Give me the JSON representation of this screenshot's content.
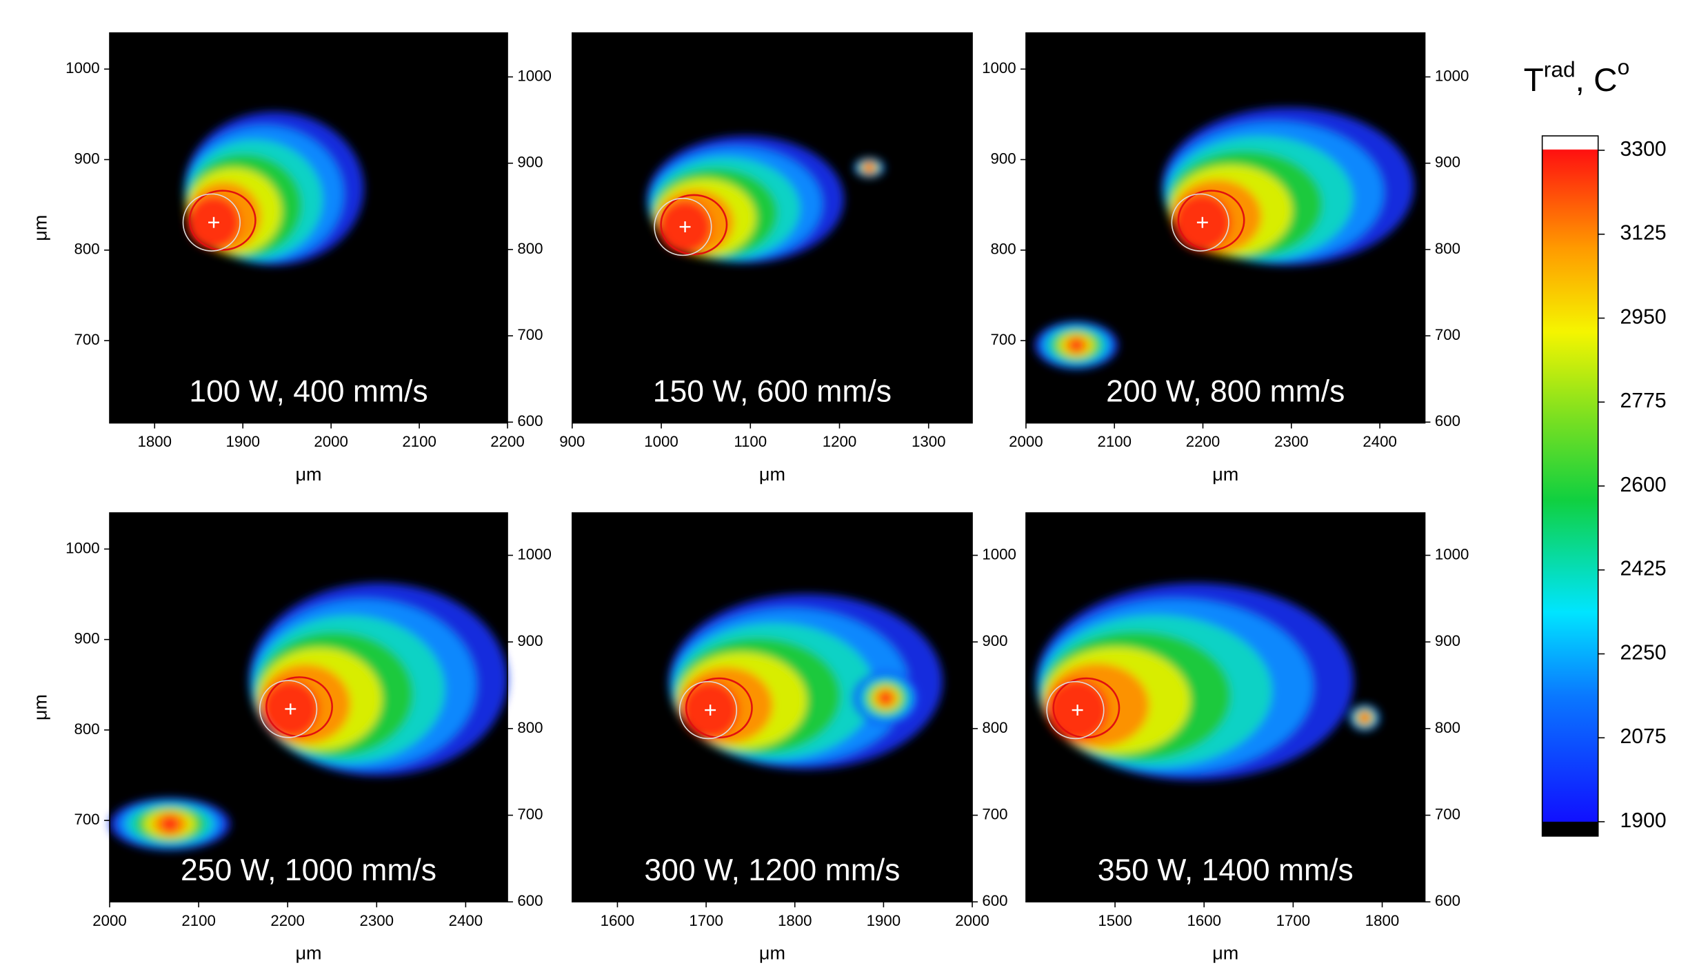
{
  "chart_data": [
    {
      "type": "heatmap",
      "annotation": "100 W, 400 mm/s",
      "xlabel": "μm",
      "ylabel": "μm",
      "xlim": [
        1749,
        2200
      ],
      "xticks": [
        1800,
        1900,
        2000,
        2100,
        2200
      ],
      "ylim": [
        609,
        1040
      ],
      "yticks": [
        700,
        800,
        900,
        1000
      ],
      "y2lim": [
        599,
        1051
      ],
      "y2ticks": [
        600,
        700,
        800,
        900,
        1000
      ]
    },
    {
      "type": "heatmap",
      "annotation": "150 W, 600 mm/s",
      "xlabel": "μm",
      "xlim": [
        900,
        1349
      ],
      "xticks": [
        900,
        1000,
        1100,
        1200,
        1300
      ]
    },
    {
      "type": "heatmap",
      "annotation": "200 W, 800 mm/s",
      "xlabel": "μm",
      "xlim": [
        2000,
        2451
      ],
      "xticks": [
        2000,
        2100,
        2200,
        2300,
        2400
      ],
      "ylim": [
        609,
        1040
      ],
      "yticks": [
        700,
        800,
        900,
        1000
      ],
      "y2lim": [
        599,
        1051
      ],
      "y2ticks": [
        600,
        700,
        800,
        900,
        1000
      ]
    },
    {
      "type": "heatmap",
      "annotation": "250 W, 1000 mm/s",
      "xlabel": "μm",
      "ylabel": "μm",
      "xlim": [
        2000,
        2447
      ],
      "xticks": [
        2000,
        2100,
        2200,
        2300,
        2400
      ],
      "ylim": [
        610,
        1040
      ],
      "yticks": [
        700,
        800,
        900,
        1000
      ],
      "y2lim": [
        600,
        1049
      ],
      "y2ticks": [
        600,
        700,
        800,
        900,
        1000
      ]
    },
    {
      "type": "heatmap",
      "annotation": "300 W, 1200 mm/s",
      "xlabel": "μm",
      "xlim": [
        1549,
        2000
      ],
      "xticks": [
        1600,
        1700,
        1800,
        1900,
        2000
      ],
      "y2lim": [
        600,
        1049
      ],
      "y2ticks": [
        600,
        700,
        800,
        900,
        1000
      ]
    },
    {
      "type": "heatmap",
      "annotation": "350 W, 1400 mm/s",
      "xlabel": "μm",
      "xlim": [
        1400,
        1848
      ],
      "xticks": [
        1500,
        1600,
        1700,
        1800
      ],
      "y2lim": [
        600,
        1049
      ],
      "y2ticks": [
        600,
        700,
        800,
        900,
        1000
      ]
    },
    {
      "type": "colorbar",
      "title": [
        "T",
        "rad",
        ", C",
        "o"
      ],
      "ylim": [
        1870,
        3330
      ],
      "yticks": [
        1900,
        2075,
        2250,
        2425,
        2600,
        2775,
        2950,
        3125,
        3300
      ]
    }
  ]
}
